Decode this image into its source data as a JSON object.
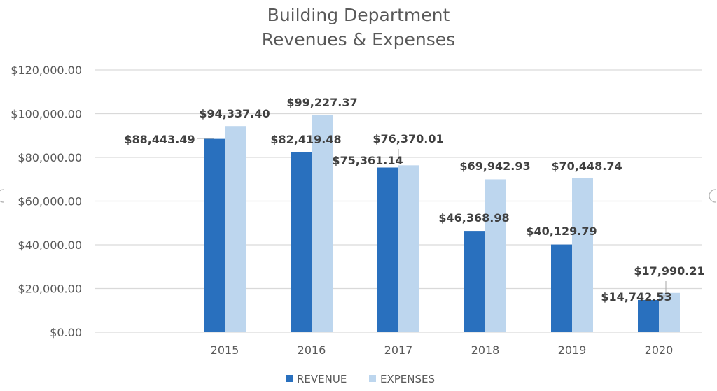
{
  "colors": {
    "revenue": "#2970BE",
    "expenses": "#BDD6EE",
    "grid": "#D9D9D9",
    "text": "#595959"
  },
  "chart_data": {
    "type": "bar",
    "title": [
      "Building Department",
      "Revenues & Expenses"
    ],
    "categories": [
      "2015",
      "2016",
      "2017",
      "2018",
      "2019",
      "2020"
    ],
    "series": [
      {
        "name": "REVENUE",
        "color": "#2970BE",
        "values": [
          88443.49,
          82419.48,
          75361.14,
          46368.98,
          40129.79,
          14742.53
        ],
        "labels": [
          "$88,443.49",
          "$82,419.48",
          "$75,361.14",
          "$46,368.98",
          "$40,129.79",
          "$14,742.53"
        ]
      },
      {
        "name": "EXPENSES",
        "color": "#BDD6EE",
        "values": [
          94337.4,
          99227.37,
          76370.01,
          69942.93,
          70448.74,
          17990.21
        ],
        "labels": [
          "$94,337.40",
          "$99,227.37",
          "$76,370.01",
          "$69,942.93",
          "$70,448.74",
          "$17,990.21"
        ]
      }
    ],
    "ylim": [
      0,
      120000
    ],
    "yticks": [
      0,
      20000,
      40000,
      60000,
      80000,
      100000,
      120000
    ],
    "ytick_labels": [
      "$0.00",
      "$20,000.00",
      "$40,000.00",
      "$60,000.00",
      "$80,000.00",
      "$100,000.00",
      "$120,000.00"
    ],
    "xlabel": "",
    "ylabel": "",
    "grid": true,
    "legend": "bottom"
  }
}
